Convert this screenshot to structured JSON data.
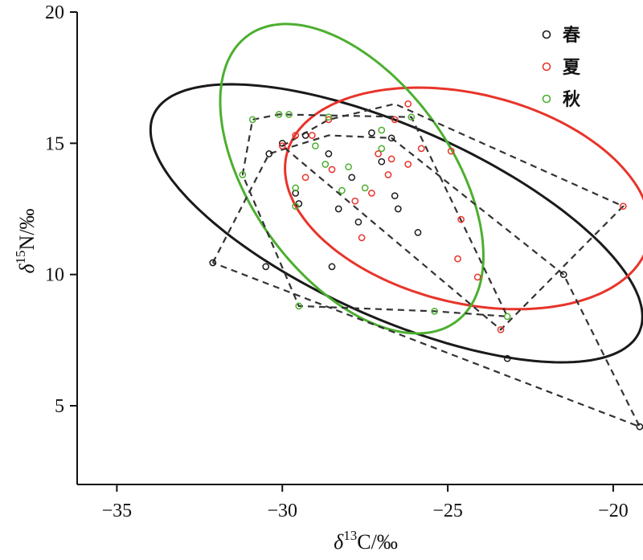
{
  "chart_data": {
    "type": "scatter",
    "xlabel": {
      "prefix": "δ",
      "sup": "13",
      "rest": "C/‰"
    },
    "ylabel": {
      "prefix": "δ",
      "sup": "15",
      "rest": "N/‰"
    },
    "xlim": [
      -36.2,
      -19.1
    ],
    "ylim": [
      2.0,
      20.0
    ],
    "xticks": [
      -35,
      -30,
      -25,
      -20
    ],
    "xtick_labels": [
      "−35",
      "−30",
      "−25",
      "−20"
    ],
    "yticks": [
      5,
      10,
      15,
      20
    ],
    "ytick_labels": [
      "5",
      "10",
      "15",
      "20"
    ],
    "legend_position": "top-right",
    "grid": false,
    "series": [
      {
        "name": "春",
        "color": "#1a1a1a",
        "points": [
          [
            -32.1,
            10.45
          ],
          [
            -30.5,
            10.3
          ],
          [
            -30.4,
            14.6
          ],
          [
            -30.0,
            15.0
          ],
          [
            -29.6,
            13.1
          ],
          [
            -29.5,
            12.7
          ],
          [
            -29.3,
            15.3
          ],
          [
            -28.6,
            14.6
          ],
          [
            -28.5,
            10.3
          ],
          [
            -28.3,
            12.5
          ],
          [
            -27.9,
            13.7
          ],
          [
            -27.7,
            12.0
          ],
          [
            -27.3,
            15.4
          ],
          [
            -27.0,
            14.3
          ],
          [
            -26.7,
            15.2
          ],
          [
            -26.6,
            13.0
          ],
          [
            -26.5,
            12.5
          ],
          [
            -25.9,
            11.6
          ],
          [
            -23.2,
            6.8
          ],
          [
            -21.5,
            10.0
          ],
          [
            -19.2,
            4.2
          ]
        ],
        "hull": [
          [
            -32.1,
            10.45
          ],
          [
            -30.4,
            14.6
          ],
          [
            -28.6,
            15.3
          ],
          [
            -26.7,
            15.2
          ],
          [
            -21.5,
            10.0
          ],
          [
            -19.2,
            4.2
          ],
          [
            -32.1,
            10.45
          ]
        ],
        "ellipse": {
          "cx": -26.55,
          "cy": 11.95,
          "rx": 8.45,
          "ry": 3.45,
          "angle_deg": -31.4
        }
      },
      {
        "name": "夏",
        "color": "#e8342a",
        "points": [
          [
            -30.0,
            14.9
          ],
          [
            -29.6,
            15.3
          ],
          [
            -29.3,
            13.7
          ],
          [
            -29.1,
            15.3
          ],
          [
            -28.6,
            15.9
          ],
          [
            -28.5,
            14.0
          ],
          [
            -27.8,
            12.8
          ],
          [
            -27.6,
            11.4
          ],
          [
            -27.3,
            13.1
          ],
          [
            -27.1,
            14.6
          ],
          [
            -26.8,
            13.8
          ],
          [
            -26.7,
            14.4
          ],
          [
            -26.6,
            15.9
          ],
          [
            -26.2,
            14.2
          ],
          [
            -26.2,
            16.5
          ],
          [
            -25.8,
            14.8
          ],
          [
            -24.9,
            14.7
          ],
          [
            -24.6,
            12.1
          ],
          [
            -24.7,
            10.6
          ],
          [
            -24.1,
            9.9
          ],
          [
            -23.4,
            7.9
          ],
          [
            -19.7,
            12.6
          ]
        ],
        "hull": [
          [
            -30.0,
            14.9
          ],
          [
            -28.6,
            15.9
          ],
          [
            -26.6,
            16.5
          ],
          [
            -19.7,
            12.6
          ],
          [
            -23.4,
            7.9
          ],
          [
            -30.0,
            14.9
          ]
        ],
        "ellipse": {
          "cx": -24.4,
          "cy": 12.9,
          "rx": 5.75,
          "ry": 3.9,
          "angle_deg": -22.5
        }
      },
      {
        "name": "秋",
        "color": "#4caf2f",
        "points": [
          [
            -31.2,
            13.8
          ],
          [
            -30.9,
            15.9
          ],
          [
            -30.1,
            16.1
          ],
          [
            -29.8,
            16.1
          ],
          [
            -29.6,
            13.3
          ],
          [
            -29.6,
            12.6
          ],
          [
            -29.5,
            8.8
          ],
          [
            -29.0,
            14.9
          ],
          [
            -28.7,
            14.2
          ],
          [
            -28.6,
            16.0
          ],
          [
            -28.2,
            13.2
          ],
          [
            -28.0,
            14.1
          ],
          [
            -27.5,
            13.3
          ],
          [
            -27.0,
            15.5
          ],
          [
            -27.0,
            14.8
          ],
          [
            -26.1,
            16.0
          ],
          [
            -25.4,
            8.6
          ],
          [
            -23.2,
            8.4
          ]
        ],
        "hull": [
          [
            -31.2,
            13.8
          ],
          [
            -30.9,
            15.9
          ],
          [
            -30.1,
            16.1
          ],
          [
            -26.1,
            16.0
          ],
          [
            -23.2,
            8.4
          ],
          [
            -25.4,
            8.6
          ],
          [
            -29.5,
            8.8
          ],
          [
            -31.2,
            13.8
          ]
        ],
        "ellipse": {
          "cx": -27.9,
          "cy": 13.65,
          "rx": 6.35,
          "ry": 3.2,
          "angle_deg": -64.5
        }
      }
    ]
  }
}
